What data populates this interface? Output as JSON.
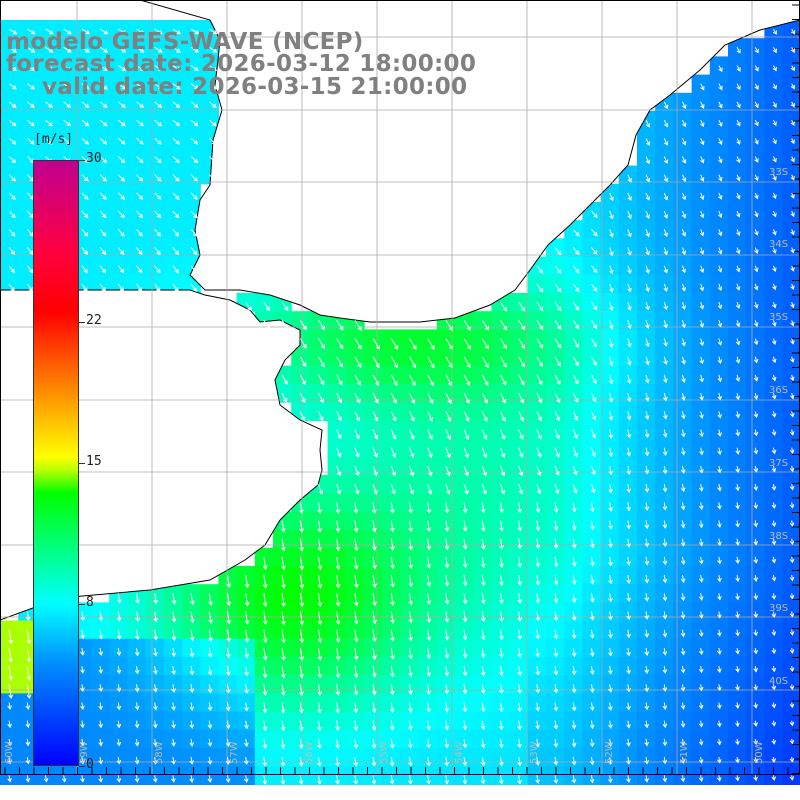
{
  "header": {
    "model_line": "modelo GEFS-WAVE (NCEP)",
    "forecast_line": "forecast date: 2026-03-12 18:00:00",
    "valid_line": "valid date: 2026-03-15 21:00:00"
  },
  "colorbar": {
    "units": "[m/s]",
    "ticks": [
      {
        "label": "30",
        "value": 30
      },
      {
        "label": "22",
        "value": 22
      },
      {
        "label": "15",
        "value": 15
      },
      {
        "label": "8",
        "value": 8
      },
      {
        "label": "0",
        "value": 0
      }
    ],
    "range": [
      0,
      30
    ],
    "colors": [
      "#0000ff",
      "#0090ff",
      "#00ffff",
      "#00ff00",
      "#ffff00",
      "#ff8000",
      "#ff0000",
      "#c00090"
    ]
  },
  "map": {
    "lat_labels": [
      "33S",
      "34S",
      "35S",
      "36S",
      "37S",
      "38S",
      "39S",
      "40S"
    ],
    "lon_labels": [
      "60W",
      "59W",
      "58W",
      "57W",
      "56W",
      "55W",
      "54W",
      "53W",
      "52W",
      "51W",
      "50W"
    ],
    "land_color": "#ffffff",
    "grid_color": "#aaaaaa"
  }
}
